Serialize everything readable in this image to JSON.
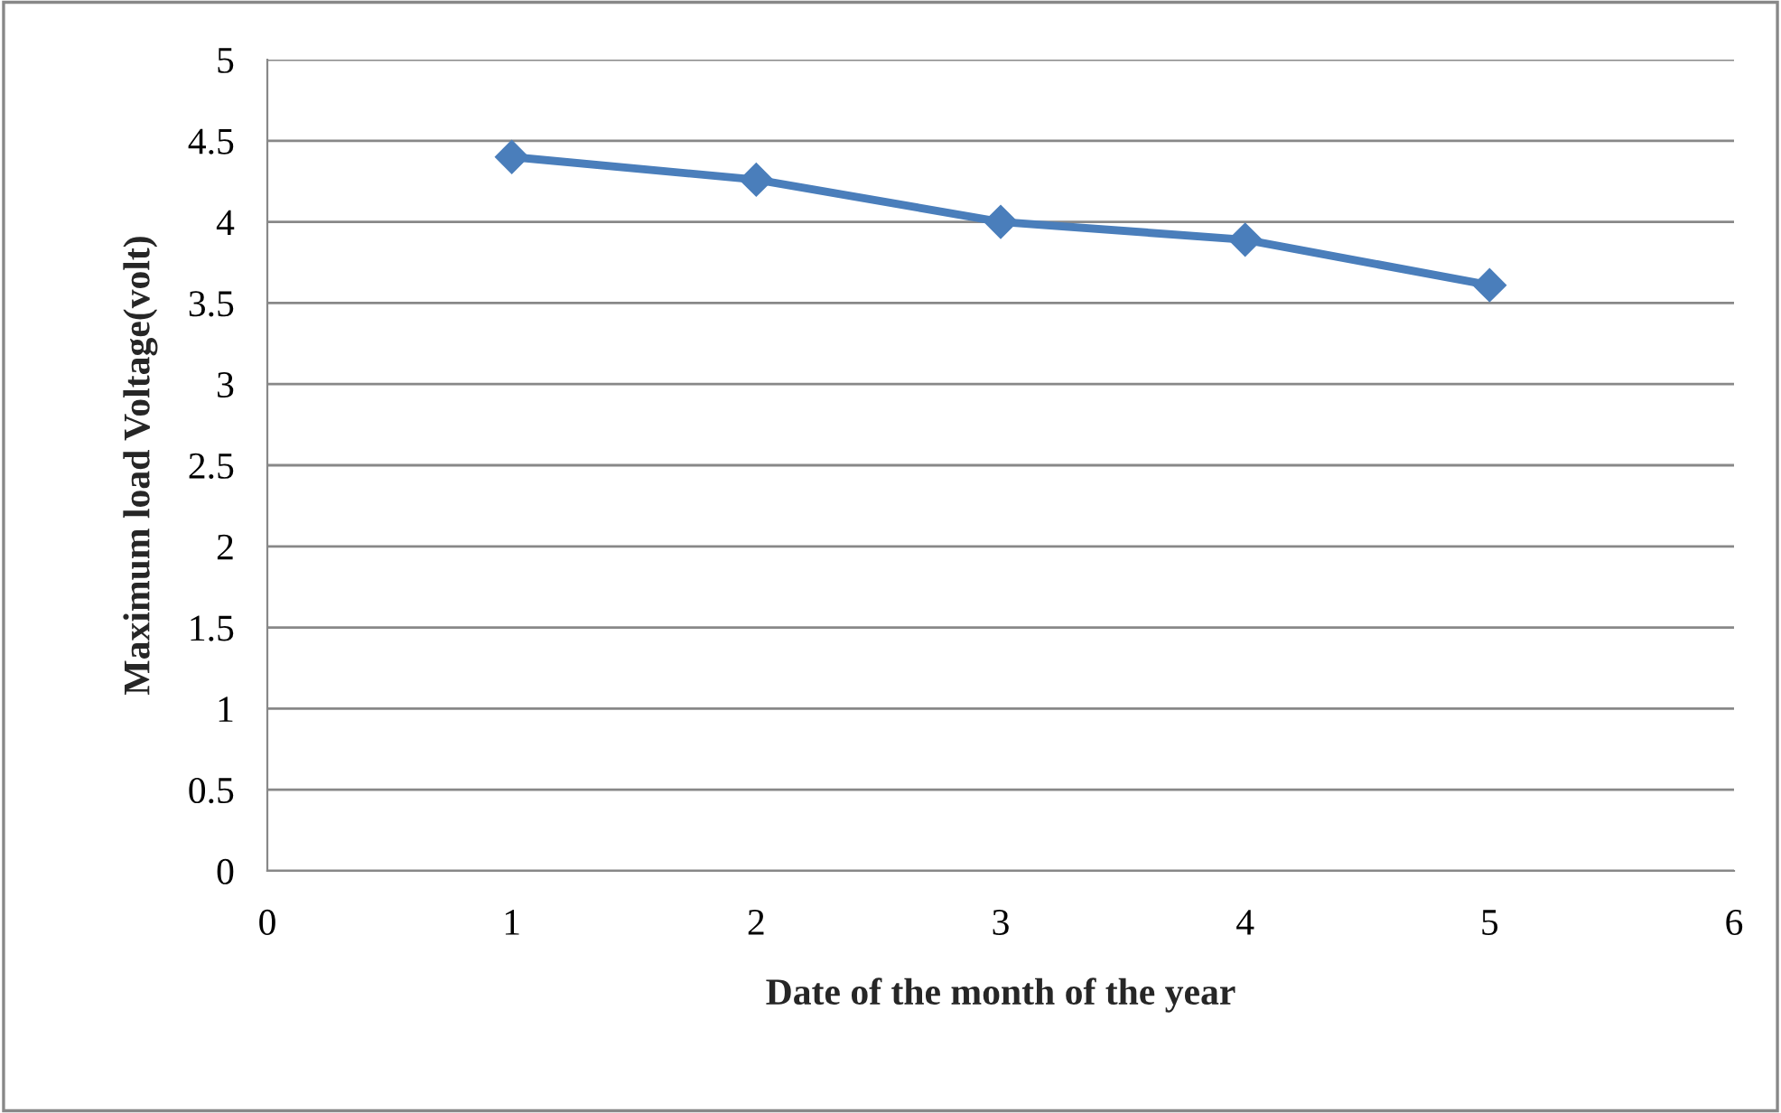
{
  "chart_data": {
    "type": "line",
    "xlabel": "Date of the month of the year",
    "ylabel": "Maximum load Voltage(volt)",
    "x": [
      1,
      2,
      3,
      4,
      5
    ],
    "series": [
      {
        "color": "#4a7ebb",
        "values": [
          4.4,
          4.26,
          4.0,
          3.89,
          3.61
        ]
      }
    ],
    "xlim": [
      0,
      6
    ],
    "xticks": [
      0,
      1,
      2,
      3,
      4,
      5,
      6
    ],
    "ylim": [
      0,
      5
    ],
    "yticks": [
      0,
      0.5,
      1,
      1.5,
      2,
      2.5,
      3,
      3.5,
      4,
      4.5,
      5
    ],
    "grid": "y",
    "marker": "diamond",
    "line_style": "solid"
  }
}
